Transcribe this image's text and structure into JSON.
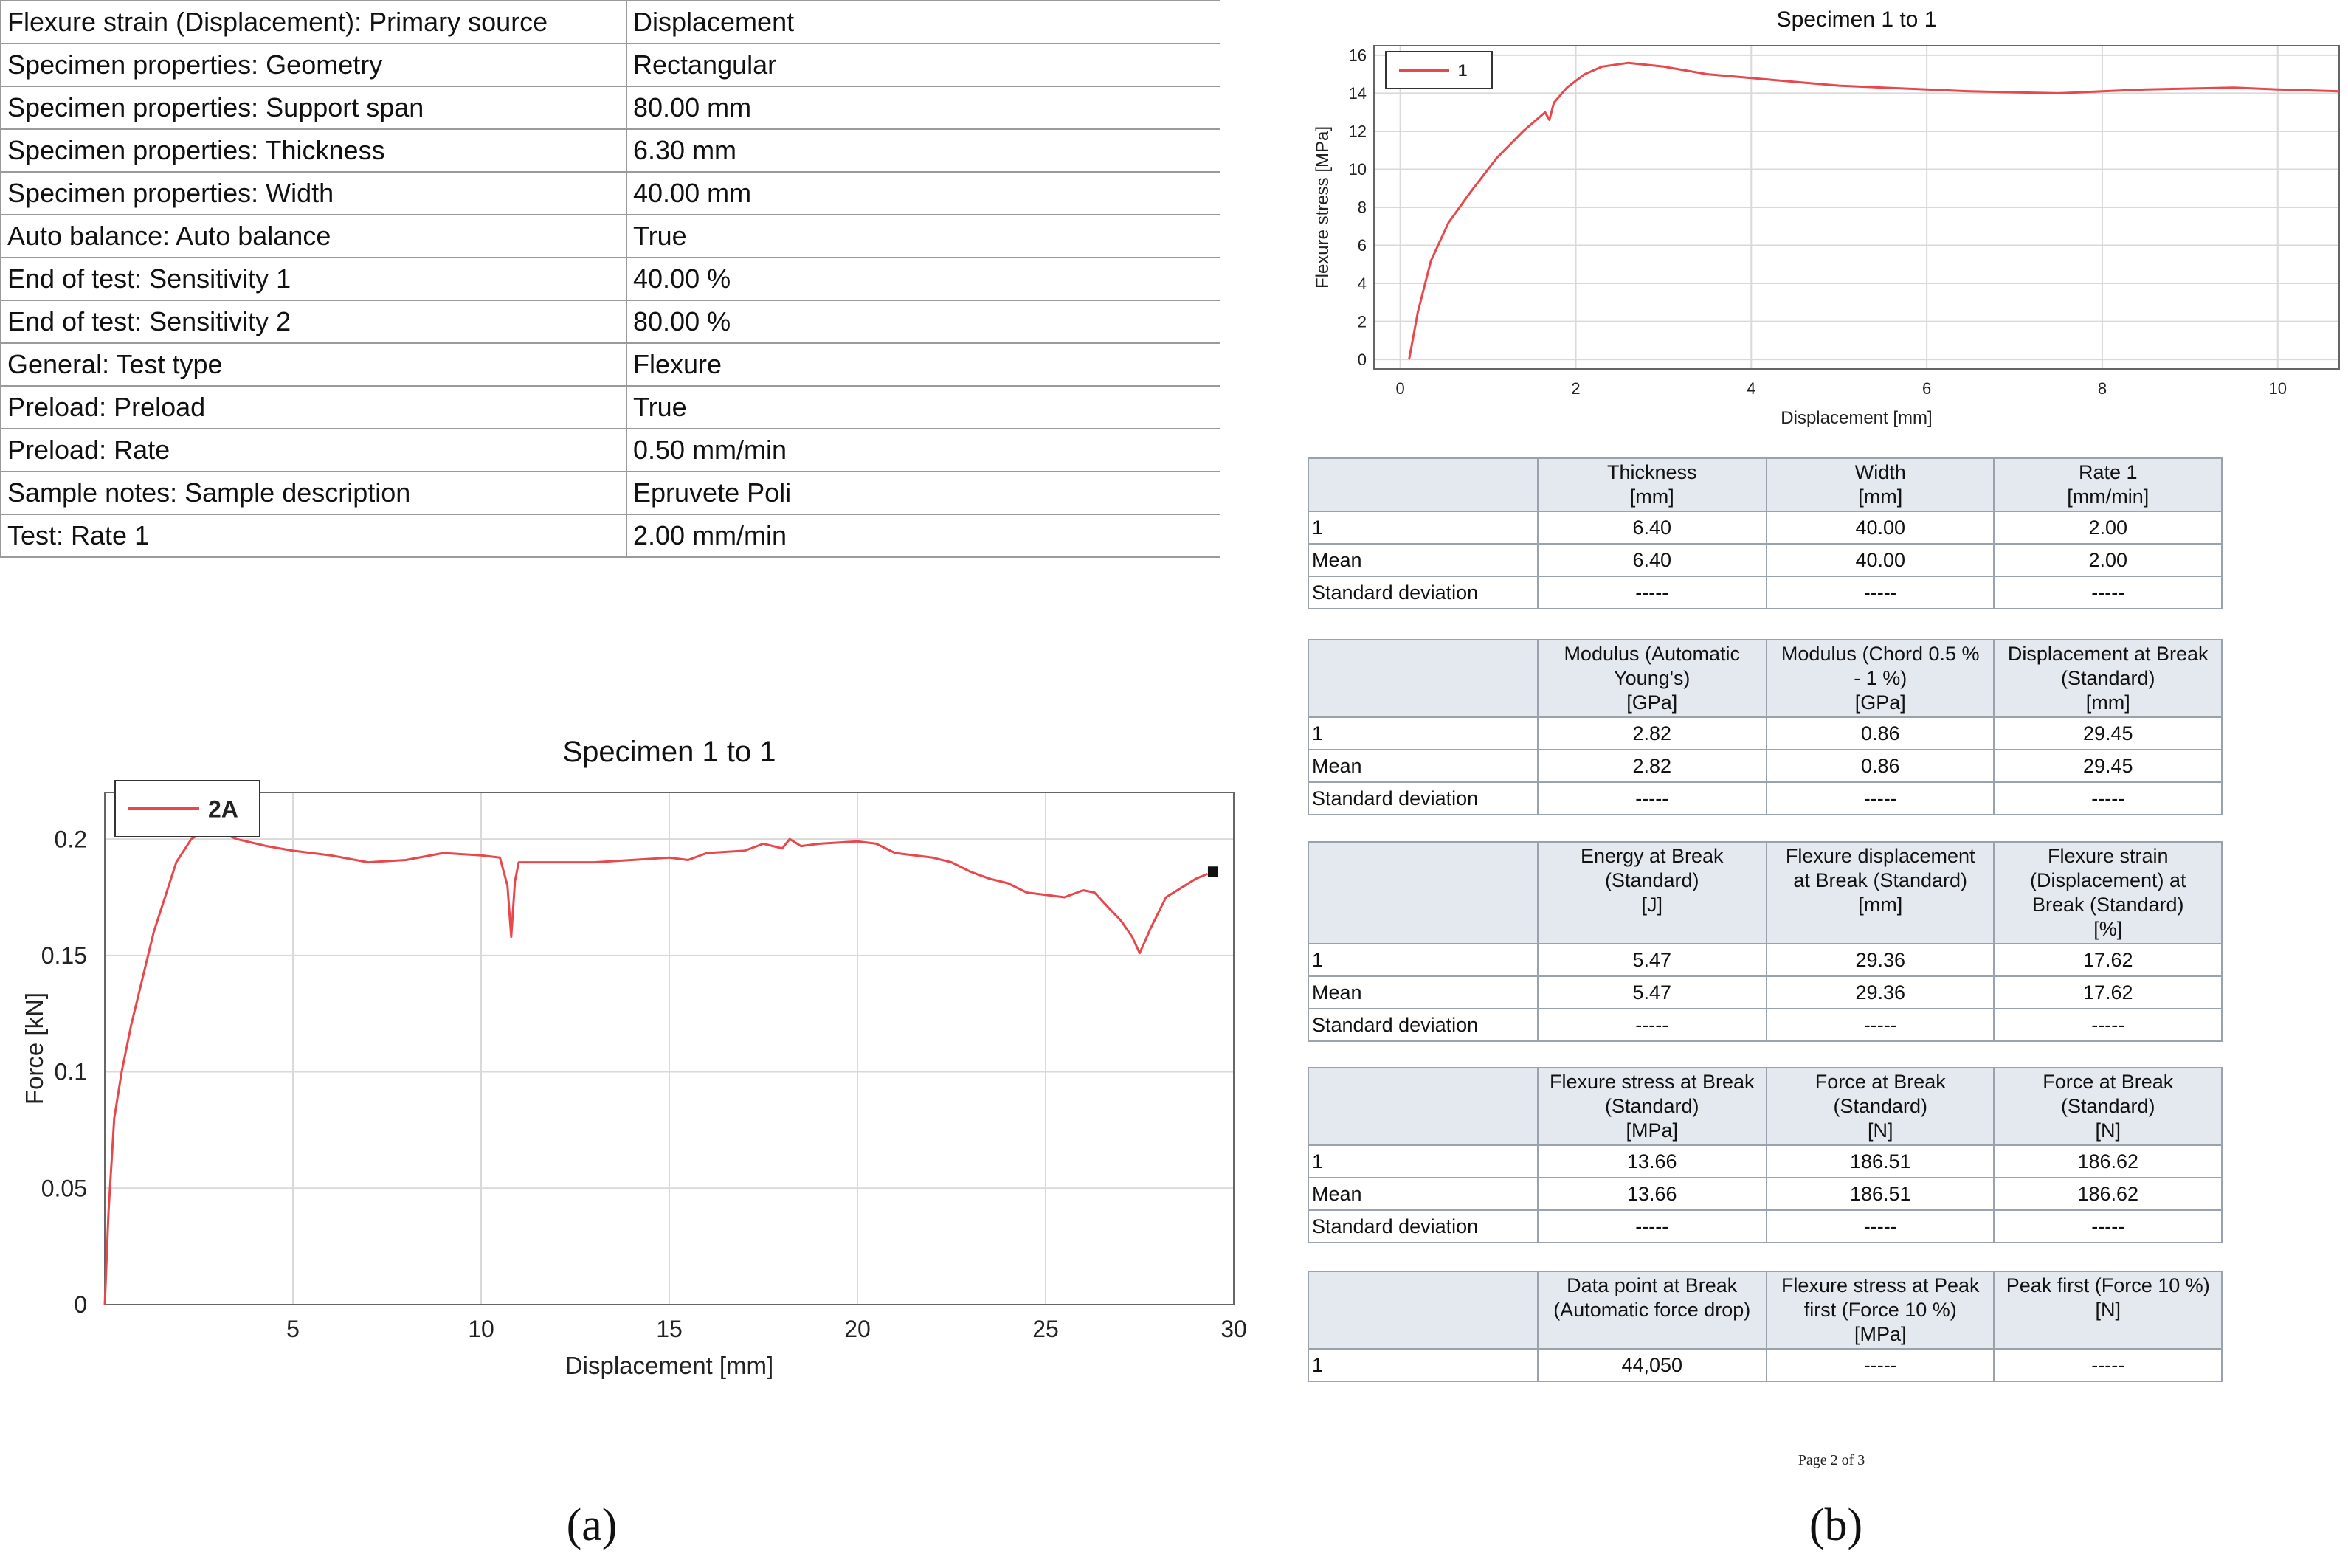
{
  "panel_a": {
    "parameters": [
      {
        "key": "Flexure strain (Displacement): Primary source",
        "value": "Displacement"
      },
      {
        "key": "Specimen properties: Geometry",
        "value": "Rectangular"
      },
      {
        "key": "Specimen properties: Support span",
        "value": "80.00 mm"
      },
      {
        "key": "Specimen properties: Thickness",
        "value": "6.30 mm"
      },
      {
        "key": "Specimen properties: Width",
        "value": "40.00 mm"
      },
      {
        "key": "Auto balance: Auto balance",
        "value": "True"
      },
      {
        "key": "End of test: Sensitivity 1",
        "value": "40.00 %"
      },
      {
        "key": "End of test: Sensitivity 2",
        "value": "80.00 %"
      },
      {
        "key": "General: Test type",
        "value": "Flexure"
      },
      {
        "key": "Preload: Preload",
        "value": "True"
      },
      {
        "key": "Preload: Rate",
        "value": "0.50 mm/min"
      },
      {
        "key": "Sample notes: Sample description",
        "value": "Epruvete Poli"
      },
      {
        "key": "Test: Rate 1",
        "value": "2.00 mm/min"
      }
    ],
    "label": "(a)"
  },
  "panel_b": {
    "label": "(b)",
    "row_labels": {
      "r1": "1",
      "mean": "Mean",
      "sd": "Standard deviation"
    },
    "tables": [
      {
        "headers": [
          [
            "Thickness",
            "[mm]"
          ],
          [
            "Width",
            "[mm]"
          ],
          [
            "Rate 1",
            "[mm/min]"
          ]
        ],
        "rows": [
          {
            "label": "1",
            "cells": [
              "6.40",
              "40.00",
              "2.00"
            ]
          },
          {
            "label": "Mean",
            "cells": [
              "6.40",
              "40.00",
              "2.00"
            ]
          },
          {
            "label": "Standard deviation",
            "cells": [
              "-----",
              "-----",
              "-----"
            ]
          }
        ]
      },
      {
        "headers": [
          [
            "Modulus (Automatic",
            "Young's)",
            "[GPa]"
          ],
          [
            "Modulus (Chord 0.5 %",
            "- 1 %)",
            "[GPa]"
          ],
          [
            "Displacement at Break",
            "(Standard)",
            "[mm]"
          ]
        ],
        "rows": [
          {
            "label": "1",
            "cells": [
              "2.82",
              "0.86",
              "29.45"
            ]
          },
          {
            "label": "Mean",
            "cells": [
              "2.82",
              "0.86",
              "29.45"
            ]
          },
          {
            "label": "Standard deviation",
            "cells": [
              "-----",
              "-----",
              "-----"
            ]
          }
        ]
      },
      {
        "headers": [
          [
            "Energy at Break",
            "(Standard)",
            "[J]"
          ],
          [
            "Flexure displacement",
            "at Break (Standard)",
            "[mm]"
          ],
          [
            "Flexure strain",
            "(Displacement) at",
            "Break (Standard)",
            "[%]"
          ]
        ],
        "rows": [
          {
            "label": "1",
            "cells": [
              "5.47",
              "29.36",
              "17.62"
            ]
          },
          {
            "label": "Mean",
            "cells": [
              "5.47",
              "29.36",
              "17.62"
            ]
          },
          {
            "label": "Standard deviation",
            "cells": [
              "-----",
              "-----",
              "-----"
            ]
          }
        ]
      },
      {
        "headers": [
          [
            "Flexure stress at Break",
            "(Standard)",
            "[MPa]"
          ],
          [
            "Force at Break",
            "(Standard)",
            "[N]"
          ],
          [
            "Force at Break",
            "(Standard)",
            "[N]"
          ]
        ],
        "rows": [
          {
            "label": "1",
            "cells": [
              "13.66",
              "186.51",
              "186.62"
            ]
          },
          {
            "label": "Mean",
            "cells": [
              "13.66",
              "186.51",
              "186.62"
            ]
          },
          {
            "label": "Standard deviation",
            "cells": [
              "-----",
              "-----",
              "-----"
            ]
          }
        ]
      },
      {
        "headers": [
          [
            "Data point at Break",
            "(Automatic force drop)"
          ],
          [
            "Flexure stress at Peak",
            "first (Force 10 %)",
            "[MPa]"
          ],
          [
            "Peak first (Force 10 %)",
            "[N]"
          ]
        ],
        "rows": [
          {
            "label": "1",
            "cells": [
              "44,050",
              "-----",
              "-----"
            ]
          }
        ]
      }
    ],
    "footer": "Page 2 of 3"
  },
  "chart_data": [
    {
      "id": "force",
      "type": "line",
      "title": "Specimen 1 to 1",
      "xlabel": "Displacement [mm]",
      "ylabel": "Force [kN]",
      "xlim": [
        0,
        30
      ],
      "ylim": [
        0,
        0.22
      ],
      "xticks": [
        5,
        10,
        15,
        20,
        25,
        30
      ],
      "yticks": [
        0,
        0.05,
        0.1,
        0.15,
        0.2
      ],
      "ytick_labels": [
        "0",
        "0.05",
        "0.1",
        "0.15",
        "0.2"
      ],
      "grid": true,
      "legend_position": "top-left",
      "color": "#e8474b",
      "series": [
        {
          "name": "2A",
          "x": [
            0,
            0.1,
            0.25,
            0.45,
            0.7,
            1.0,
            1.3,
            1.6,
            1.9,
            2.3,
            2.8,
            3.5,
            4.3,
            5.0,
            6.0,
            7.0,
            8.0,
            9.0,
            10.0,
            10.5,
            10.7,
            10.8,
            10.9,
            11.0,
            11.3,
            12.0,
            13.0,
            14.0,
            15.0,
            15.5,
            16.0,
            17.0,
            17.5,
            18.0,
            18.2,
            18.5,
            19.0,
            20.0,
            20.5,
            21.0,
            22.0,
            22.5,
            23.0,
            23.5,
            24.0,
            24.5,
            25.0,
            25.5,
            26.0,
            26.3,
            26.7,
            27.0,
            27.3,
            27.5,
            27.8,
            28.2,
            28.7,
            29.0,
            29.3
          ],
          "y": [
            0.0,
            0.04,
            0.08,
            0.1,
            0.12,
            0.14,
            0.16,
            0.175,
            0.19,
            0.2,
            0.205,
            0.2,
            0.197,
            0.195,
            0.193,
            0.19,
            0.191,
            0.194,
            0.193,
            0.192,
            0.18,
            0.158,
            0.182,
            0.19,
            0.19,
            0.19,
            0.19,
            0.191,
            0.192,
            0.191,
            0.194,
            0.195,
            0.198,
            0.196,
            0.2,
            0.197,
            0.198,
            0.199,
            0.198,
            0.194,
            0.192,
            0.19,
            0.186,
            0.183,
            0.181,
            0.177,
            0.176,
            0.175,
            0.178,
            0.177,
            0.17,
            0.165,
            0.158,
            0.151,
            0.162,
            0.175,
            0.18,
            0.183,
            0.185
          ]
        }
      ],
      "end_marker": {
        "x": 29.45,
        "y": 0.186
      }
    },
    {
      "id": "stress",
      "type": "line",
      "title": "Specimen 1 to 1",
      "xlabel": "Displacement [mm]",
      "ylabel": "Flexure stress [MPa]",
      "xlim": [
        -0.3,
        10.7
      ],
      "ylim": [
        -0.5,
        16.5
      ],
      "xticks": [
        0,
        2,
        4,
        6,
        8,
        10
      ],
      "yticks": [
        0,
        2,
        4,
        6,
        8,
        10,
        12,
        14,
        16
      ],
      "grid": true,
      "legend_position": "top-left",
      "color": "#e8474b",
      "series": [
        {
          "name": "1",
          "x": [
            0.1,
            0.2,
            0.35,
            0.55,
            0.8,
            1.1,
            1.4,
            1.65,
            1.7,
            1.75,
            1.9,
            2.1,
            2.3,
            2.6,
            3.0,
            3.5,
            4.0,
            4.5,
            5.0,
            5.5,
            6.0,
            6.5,
            7.0,
            7.5,
            8.0,
            8.5,
            9.0,
            9.5,
            10.0,
            10.7
          ],
          "y": [
            0.0,
            2.5,
            5.2,
            7.2,
            8.8,
            10.6,
            12.0,
            13.0,
            12.6,
            13.5,
            14.3,
            15.0,
            15.4,
            15.6,
            15.4,
            15.0,
            14.8,
            14.6,
            14.4,
            14.3,
            14.2,
            14.1,
            14.05,
            14.0,
            14.1,
            14.2,
            14.25,
            14.3,
            14.2,
            14.1
          ]
        }
      ]
    }
  ]
}
